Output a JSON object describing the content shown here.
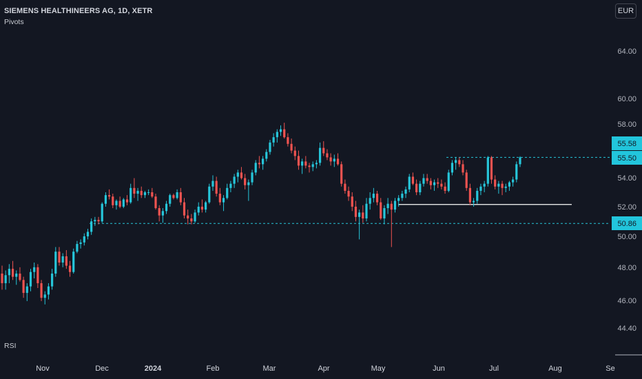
{
  "header": {
    "title": "SIEMENS HEALTHINEERS AG, 1D, XETR",
    "indicator": "Pivots"
  },
  "rsi_label": "RSI",
  "currency": "EUR",
  "colors": {
    "background": "#131722",
    "up": "#26c6da",
    "down": "#ef5350",
    "dashed_line": "#26c6da",
    "label_bg": "#22c5dc",
    "text": "#d1d4dc"
  },
  "chart_data": {
    "type": "candlestick",
    "x_tick_labels": [
      "Nov",
      "Dec",
      "2024",
      "Feb",
      "Mar",
      "Apr",
      "May",
      "Jun",
      "Jul",
      "Aug",
      "Se"
    ],
    "y_tick_labels": [
      "64.00",
      "60.00",
      "58.00",
      "54.00",
      "52.00",
      "50.00",
      "48.00",
      "46.00",
      "44.40"
    ],
    "price_labels": [
      {
        "text": "55.58"
      },
      {
        "text": "55.50"
      },
      {
        "text": "50.86"
      }
    ],
    "y_axis_scale": "log",
    "horizontal_lines": [
      {
        "value": 55.5,
        "style": "dashed",
        "color": "#26c6da"
      },
      {
        "value": 50.86,
        "style": "dashed",
        "color": "#26c6da"
      },
      {
        "value": 52.15,
        "style": "solid",
        "color": "#ffffff"
      }
    ],
    "candles_ohlc": [
      [
        47.6,
        48.1,
        46.6,
        47.0
      ],
      [
        47.0,
        47.8,
        46.6,
        47.5
      ],
      [
        47.5,
        48.2,
        47.0,
        47.9
      ],
      [
        47.9,
        48.4,
        47.2,
        47.4
      ],
      [
        47.4,
        47.8,
        46.9,
        47.6
      ],
      [
        47.6,
        48.0,
        47.1,
        47.2
      ],
      [
        47.2,
        47.4,
        46.1,
        46.4
      ],
      [
        46.4,
        47.0,
        45.9,
        46.8
      ],
      [
        46.8,
        47.9,
        46.5,
        47.7
      ],
      [
        47.7,
        48.3,
        47.3,
        48.0
      ],
      [
        48.0,
        48.2,
        46.7,
        47.0
      ],
      [
        47.0,
        47.2,
        45.9,
        46.1
      ],
      [
        46.1,
        46.5,
        45.7,
        46.3
      ],
      [
        46.3,
        47.0,
        46.0,
        46.8
      ],
      [
        46.8,
        47.9,
        46.6,
        47.6
      ],
      [
        47.6,
        49.3,
        47.4,
        49.0
      ],
      [
        49.0,
        49.3,
        48.1,
        48.3
      ],
      [
        48.3,
        48.9,
        48.0,
        48.7
      ],
      [
        48.7,
        49.1,
        47.9,
        48.1
      ],
      [
        48.1,
        48.4,
        47.4,
        47.7
      ],
      [
        47.7,
        49.2,
        47.6,
        49.0
      ],
      [
        49.0,
        49.7,
        48.9,
        49.5
      ],
      [
        49.5,
        49.8,
        49.2,
        49.6
      ],
      [
        49.6,
        50.2,
        49.4,
        50.0
      ],
      [
        50.0,
        50.5,
        49.8,
        50.3
      ],
      [
        50.3,
        51.2,
        50.1,
        51.0
      ],
      [
        51.0,
        51.3,
        50.7,
        51.1
      ],
      [
        51.1,
        51.3,
        50.8,
        51.0
      ],
      [
        51.0,
        52.3,
        50.9,
        52.2
      ],
      [
        52.2,
        53.0,
        52.0,
        52.8
      ],
      [
        52.8,
        53.2,
        52.5,
        52.7
      ],
      [
        52.7,
        52.9,
        51.9,
        52.1
      ],
      [
        52.1,
        52.5,
        51.8,
        52.4
      ],
      [
        52.4,
        52.7,
        51.9,
        52.0
      ],
      [
        52.0,
        52.6,
        51.9,
        52.5
      ],
      [
        52.5,
        52.8,
        52.1,
        52.3
      ],
      [
        52.3,
        53.6,
        52.2,
        53.3
      ],
      [
        53.3,
        54.0,
        52.6,
        52.9
      ],
      [
        52.9,
        53.3,
        52.4,
        53.1
      ],
      [
        53.1,
        53.4,
        52.6,
        52.8
      ],
      [
        52.8,
        53.1,
        52.6,
        53.0
      ],
      [
        53.0,
        53.2,
        52.8,
        53.0
      ],
      [
        53.0,
        53.3,
        52.6,
        52.7
      ],
      [
        52.7,
        52.9,
        51.8,
        51.9
      ],
      [
        51.9,
        52.1,
        51.0,
        51.4
      ],
      [
        51.4,
        51.9,
        50.9,
        51.7
      ],
      [
        51.7,
        52.4,
        51.5,
        52.2
      ],
      [
        52.2,
        52.9,
        52.0,
        52.8
      ],
      [
        52.8,
        52.9,
        52.5,
        52.6
      ],
      [
        52.6,
        53.2,
        52.5,
        53.0
      ],
      [
        53.0,
        53.3,
        52.1,
        52.3
      ],
      [
        52.3,
        52.6,
        51.2,
        51.4
      ],
      [
        51.4,
        51.8,
        50.8,
        51.2
      ],
      [
        51.2,
        51.5,
        50.8,
        51.0
      ],
      [
        51.0,
        51.8,
        50.9,
        51.6
      ],
      [
        51.6,
        52.3,
        51.4,
        52.0
      ],
      [
        52.0,
        52.5,
        51.6,
        51.8
      ],
      [
        51.8,
        52.4,
        51.6,
        52.3
      ],
      [
        52.3,
        53.6,
        52.2,
        53.4
      ],
      [
        53.4,
        54.2,
        53.1,
        53.8
      ],
      [
        53.8,
        54.1,
        52.7,
        52.9
      ],
      [
        52.9,
        53.3,
        52.1,
        52.3
      ],
      [
        52.3,
        52.8,
        51.7,
        52.6
      ],
      [
        52.6,
        53.6,
        52.5,
        53.3
      ],
      [
        53.3,
        53.8,
        53.0,
        53.6
      ],
      [
        53.6,
        54.3,
        53.3,
        54.1
      ],
      [
        54.1,
        54.6,
        53.7,
        54.4
      ],
      [
        54.4,
        54.8,
        53.9,
        54.0
      ],
      [
        54.0,
        54.3,
        53.2,
        53.5
      ],
      [
        53.5,
        53.9,
        52.4,
        53.7
      ],
      [
        53.7,
        54.6,
        53.5,
        54.4
      ],
      [
        54.4,
        55.3,
        54.2,
        55.1
      ],
      [
        55.1,
        55.6,
        54.7,
        55.0
      ],
      [
        55.0,
        55.6,
        54.6,
        55.4
      ],
      [
        55.4,
        56.1,
        55.2,
        55.9
      ],
      [
        55.9,
        56.8,
        55.7,
        56.6
      ],
      [
        56.6,
        57.3,
        56.3,
        57.0
      ],
      [
        57.0,
        57.6,
        56.6,
        57.4
      ],
      [
        57.4,
        57.9,
        57.1,
        57.6
      ],
      [
        57.6,
        58.1,
        56.9,
        57.0
      ],
      [
        57.0,
        57.3,
        56.3,
        56.5
      ],
      [
        56.5,
        56.9,
        55.8,
        56.0
      ],
      [
        56.0,
        56.3,
        55.3,
        55.6
      ],
      [
        55.6,
        56.0,
        54.6,
        54.9
      ],
      [
        54.9,
        55.4,
        54.3,
        55.2
      ],
      [
        55.2,
        55.6,
        54.7,
        54.9
      ],
      [
        54.9,
        55.1,
        54.4,
        54.8
      ],
      [
        54.8,
        55.2,
        54.5,
        55.0
      ],
      [
        55.0,
        55.3,
        54.7,
        55.1
      ],
      [
        55.1,
        56.6,
        54.9,
        56.2
      ],
      [
        56.2,
        56.7,
        55.6,
        55.8
      ],
      [
        55.8,
        56.1,
        55.3,
        55.5
      ],
      [
        55.5,
        55.8,
        54.9,
        55.2
      ],
      [
        55.2,
        55.7,
        54.8,
        55.4
      ],
      [
        55.4,
        55.8,
        54.9,
        55.0
      ],
      [
        55.0,
        55.2,
        53.4,
        53.6
      ],
      [
        53.6,
        53.9,
        52.9,
        53.1
      ],
      [
        53.1,
        53.4,
        52.4,
        52.7
      ],
      [
        52.7,
        53.0,
        51.7,
        52.0
      ],
      [
        52.0,
        52.4,
        51.0,
        51.3
      ],
      [
        51.3,
        51.8,
        49.8,
        51.6
      ],
      [
        51.6,
        52.1,
        50.9,
        51.2
      ],
      [
        51.2,
        52.6,
        51.0,
        52.2
      ],
      [
        52.2,
        53.0,
        51.8,
        52.6
      ],
      [
        52.6,
        53.3,
        52.3,
        52.9
      ],
      [
        52.9,
        53.1,
        52.1,
        52.3
      ],
      [
        52.3,
        52.6,
        51.1,
        51.2
      ],
      [
        51.2,
        52.1,
        50.8,
        51.9
      ],
      [
        51.9,
        52.6,
        51.5,
        52.2
      ],
      [
        52.2,
        52.4,
        49.3,
        51.8
      ],
      [
        51.8,
        52.6,
        51.6,
        52.4
      ],
      [
        52.4,
        52.8,
        52.0,
        52.6
      ],
      [
        52.6,
        53.1,
        52.4,
        52.9
      ],
      [
        52.9,
        53.4,
        52.6,
        53.2
      ],
      [
        53.2,
        54.3,
        53.0,
        54.1
      ],
      [
        54.1,
        54.4,
        53.5,
        53.6
      ],
      [
        53.6,
        53.9,
        52.8,
        53.0
      ],
      [
        53.0,
        53.8,
        52.8,
        53.6
      ],
      [
        53.6,
        54.3,
        53.4,
        54.0
      ],
      [
        54.0,
        54.3,
        53.6,
        53.8
      ],
      [
        53.8,
        54.0,
        53.2,
        53.5
      ],
      [
        53.5,
        53.9,
        53.1,
        53.7
      ],
      [
        53.7,
        54.0,
        53.3,
        53.6
      ],
      [
        53.6,
        53.9,
        53.2,
        53.4
      ],
      [
        53.4,
        53.7,
        52.9,
        53.1
      ],
      [
        53.1,
        54.6,
        53.0,
        54.4
      ],
      [
        54.4,
        55.3,
        54.2,
        55.1
      ],
      [
        55.1,
        55.5,
        54.6,
        55.3
      ],
      [
        55.3,
        55.5,
        54.8,
        55.0
      ],
      [
        55.0,
        55.3,
        54.2,
        54.4
      ],
      [
        54.4,
        54.6,
        53.1,
        53.3
      ],
      [
        53.3,
        53.6,
        52.1,
        52.3
      ],
      [
        52.3,
        52.6,
        52.0,
        52.4
      ],
      [
        52.4,
        53.3,
        52.2,
        53.1
      ],
      [
        53.1,
        53.6,
        52.8,
        53.4
      ],
      [
        53.4,
        53.8,
        53.0,
        53.6
      ],
      [
        53.6,
        55.6,
        53.4,
        55.5
      ],
      [
        55.5,
        55.6,
        53.6,
        53.9
      ],
      [
        53.9,
        54.2,
        53.2,
        53.4
      ],
      [
        53.4,
        53.8,
        52.9,
        53.6
      ],
      [
        53.6,
        53.8,
        52.8,
        53.3
      ],
      [
        53.3,
        53.6,
        53.0,
        53.4
      ],
      [
        53.4,
        53.8,
        53.1,
        53.7
      ],
      [
        53.7,
        54.1,
        53.4,
        53.9
      ],
      [
        53.9,
        55.2,
        53.7,
        55.0
      ],
      [
        55.0,
        55.58,
        54.8,
        55.5
      ]
    ]
  }
}
